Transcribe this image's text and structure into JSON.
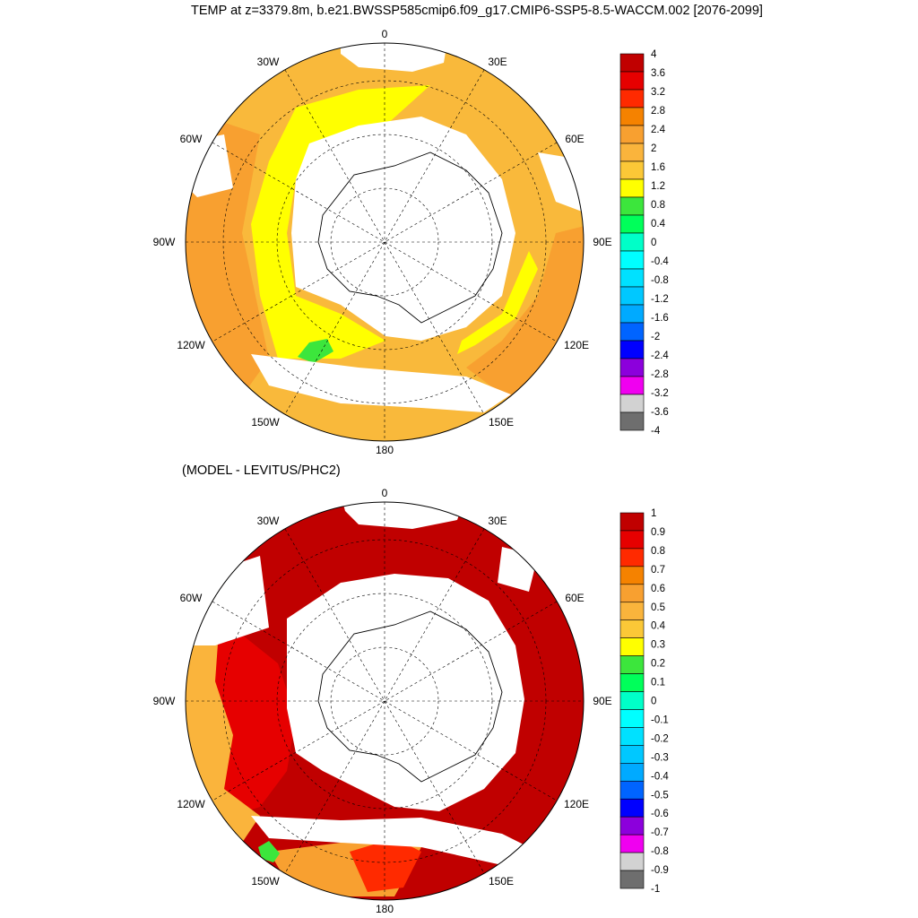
{
  "title": "TEMP at z=3379.8m, b.e21.BWSSP585cmip6.f09_g17.CMIP6-SSP5-8.5-WACCM.002 [2076-2099]",
  "diff_title": "(MODEL - LEVITUS/PHC2)",
  "longitude_labels": [
    "0",
    "30E",
    "60E",
    "90E",
    "120E",
    "150E",
    "180",
    "150W",
    "120W",
    "90W",
    "60W",
    "30W"
  ],
  "colors": {
    "ocean_fill_warm": "#f9b93b",
    "ocean_fill_deep_red": "#c00000",
    "land": "#ffffff",
    "outline": "#000000"
  },
  "top_colorbar": {
    "labels": [
      "4",
      "3.6",
      "3.2",
      "2.8",
      "2.4",
      "2",
      "1.6",
      "1.2",
      "0.8",
      "0.4",
      "0",
      "-0.4",
      "-0.8",
      "-1.2",
      "-1.6",
      "-2",
      "-2.4",
      "-2.8",
      "-3.2",
      "-3.6",
      "-4"
    ],
    "colors": [
      "#c00000",
      "#e60000",
      "#ff2a00",
      "#f58200",
      "#f8a030",
      "#fab43c",
      "#fbc837",
      "#ffff00",
      "#3ce63c",
      "#00ff5a",
      "#00ffc8",
      "#00ffff",
      "#00e1ff",
      "#00c8ff",
      "#00aaff",
      "#0064ff",
      "#0000ff",
      "#8c00dc",
      "#f000f0",
      "#d2d2d2",
      "#6e6e6e"
    ]
  },
  "bottom_colorbar": {
    "labels": [
      "1",
      "0.9",
      "0.8",
      "0.7",
      "0.6",
      "0.5",
      "0.4",
      "0.3",
      "0.2",
      "0.1",
      "0",
      "-0.1",
      "-0.2",
      "-0.3",
      "-0.4",
      "-0.5",
      "-0.6",
      "-0.7",
      "-0.8",
      "-0.9",
      "-1"
    ],
    "colors": [
      "#c00000",
      "#e60000",
      "#ff2a00",
      "#f58200",
      "#f8a030",
      "#fab43c",
      "#fbc837",
      "#ffff00",
      "#3ce63c",
      "#00ff5a",
      "#00ffc8",
      "#00ffff",
      "#00e1ff",
      "#00c8ff",
      "#00aaff",
      "#0064ff",
      "#0000ff",
      "#8c00dc",
      "#f000f0",
      "#d2d2d2",
      "#6e6e6e"
    ]
  }
}
